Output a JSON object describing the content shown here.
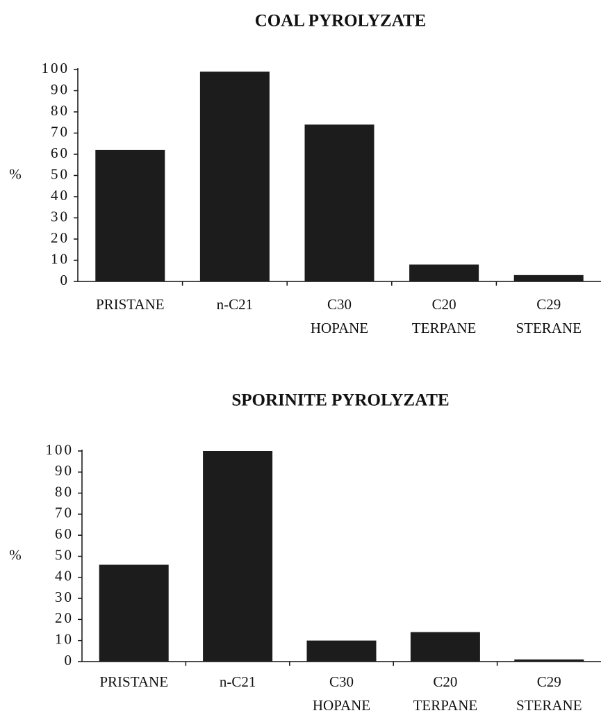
{
  "chart_data": [
    {
      "type": "bar",
      "title": "COAL PYROLYZATE",
      "ylabel": "%",
      "categories": [
        [
          "PRISTANE"
        ],
        [
          "n-C21"
        ],
        [
          "C30",
          "HOPANE"
        ],
        [
          "C20",
          "TERPANE"
        ],
        [
          "C29",
          "STERANE"
        ]
      ],
      "values": [
        62,
        99,
        74,
        8,
        3
      ],
      "color": "#1c1c1c",
      "ylim": [
        0,
        100
      ],
      "yticks": [
        0,
        10,
        20,
        30,
        40,
        50,
        60,
        70,
        80,
        90,
        100
      ]
    },
    {
      "type": "bar",
      "title": "SPORINITE PYROLYZATE",
      "ylabel": "%",
      "categories": [
        [
          "PRISTANE"
        ],
        [
          "n-C21"
        ],
        [
          "C30",
          "HOPANE"
        ],
        [
          "C20",
          "TERPANE"
        ],
        [
          "C29",
          "STERANE"
        ]
      ],
      "values": [
        46,
        100,
        10,
        14,
        1
      ],
      "color": "#1c1c1c",
      "ylim": [
        0,
        100
      ],
      "yticks": [
        0,
        10,
        20,
        30,
        40,
        50,
        60,
        70,
        80,
        90,
        100
      ]
    }
  ]
}
